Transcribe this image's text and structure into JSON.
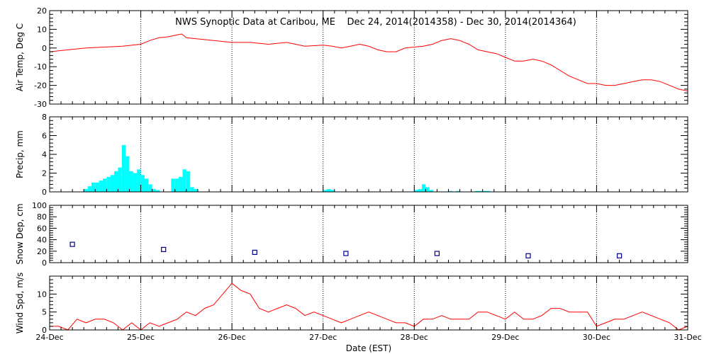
{
  "title": "NWS Synoptic Data at Caribou, ME    Dec 24, 2014(2014358) - Dec 30, 2014(2014364)",
  "xlabel": "Date (EST)",
  "x_tick_labels": [
    "24-Dec",
    "25-Dec",
    "26-Dec",
    "27-Dec",
    "28-Dec",
    "29-Dec",
    "30-Dec",
    "31-Dec"
  ],
  "colors": {
    "temp": "#ff0000",
    "precip": "#00ffff",
    "snow": "#00008b",
    "wind": "#ff0000",
    "axis": "#000000",
    "grid": "#000000"
  },
  "chart_data": [
    {
      "type": "line",
      "ylabel": "Air Temp, Deg C",
      "ylim": [
        -30,
        20
      ],
      "yticks": [
        -30,
        -20,
        -10,
        0,
        10,
        20
      ],
      "xlim": [
        0,
        7
      ],
      "grid": "dotted-vertical",
      "x": [
        0,
        0.2,
        0.4,
        0.6,
        0.8,
        1.0,
        1.1,
        1.2,
        1.3,
        1.4,
        1.45,
        1.5,
        1.6,
        1.7,
        1.8,
        2.0,
        2.2,
        2.4,
        2.6,
        2.8,
        3.0,
        3.1,
        3.2,
        3.3,
        3.4,
        3.5,
        3.6,
        3.7,
        3.8,
        3.9,
        4.0,
        4.1,
        4.2,
        4.3,
        4.4,
        4.5,
        4.55,
        4.6,
        4.7,
        4.8,
        4.9,
        5.0,
        5.1,
        5.2,
        5.3,
        5.4,
        5.5,
        5.6,
        5.7,
        5.8,
        5.9,
        6.0,
        6.1,
        6.2,
        6.3,
        6.4,
        6.5,
        6.6,
        6.7,
        6.8,
        6.9,
        7.0
      ],
      "values": [
        -2,
        -1,
        0,
        0.5,
        1,
        2,
        4,
        5.5,
        6,
        7,
        7.5,
        5.5,
        5,
        4.5,
        4,
        3,
        3,
        2,
        3,
        1,
        1.5,
        1,
        0,
        1,
        2,
        1,
        -1,
        -2,
        -2,
        0,
        0.5,
        1,
        2,
        4,
        5,
        4,
        3,
        2,
        -1,
        -2,
        -3,
        -5,
        -7,
        -7,
        -6,
        -7,
        -9,
        -12,
        -15,
        -17,
        -19,
        -19,
        -20,
        -20,
        -19,
        -18,
        -17,
        -17,
        -18,
        -20,
        -22,
        -23
      ]
    },
    {
      "type": "bar",
      "ylabel": "Precip, mm",
      "ylim": [
        0,
        8
      ],
      "yticks": [
        0,
        2,
        4,
        6,
        8
      ],
      "xlim": [
        0,
        7
      ],
      "grid": "dotted-vertical",
      "x": [
        0.375,
        0.4167,
        0.4583,
        0.5,
        0.5417,
        0.5833,
        0.625,
        0.6667,
        0.7083,
        0.75,
        0.7917,
        0.8333,
        0.875,
        0.9167,
        0.9583,
        1.0,
        1.0417,
        1.0833,
        1.125,
        1.1667,
        1.3333,
        1.375,
        1.4167,
        1.4583,
        1.5,
        1.5417,
        1.5833,
        3.0,
        3.0417,
        3.0833,
        4.0,
        4.0417,
        4.0833,
        4.125,
        4.1667,
        4.375,
        4.4583,
        4.6667,
        4.7083,
        4.75,
        4.7917
      ],
      "values": [
        0.3,
        0.6,
        1.0,
        1.0,
        1.2,
        1.4,
        1.6,
        1.8,
        2.2,
        2.6,
        5.0,
        3.8,
        2.2,
        2.0,
        2.4,
        1.8,
        1.4,
        0.8,
        0.3,
        0.2,
        1.4,
        1.4,
        1.6,
        2.4,
        2.2,
        0.5,
        0.3,
        0.2,
        0.3,
        0.2,
        0.2,
        0.3,
        0.8,
        0.5,
        0.2,
        0.1,
        0.1,
        0.1,
        0.1,
        0.1,
        0.1
      ]
    },
    {
      "type": "scatter",
      "ylabel": "Snow Dep, cm",
      "ylim": [
        0,
        100
      ],
      "yticks": [
        0,
        20,
        40,
        60,
        80,
        100
      ],
      "xlim": [
        0,
        7
      ],
      "grid": "dotted-vertical",
      "marker": "square",
      "x": [
        0.25,
        1.25,
        2.25,
        3.25,
        4.25,
        5.25,
        6.25
      ],
      "values": [
        32,
        23,
        18,
        16,
        16,
        12,
        12
      ]
    },
    {
      "type": "line",
      "ylabel": "Wind Spd, m/s",
      "ylim": [
        0,
        15
      ],
      "yticks": [
        0,
        5,
        10
      ],
      "xlim": [
        0,
        7
      ],
      "grid": "dotted-vertical",
      "x": [
        0,
        0.1,
        0.2,
        0.3,
        0.4,
        0.5,
        0.6,
        0.7,
        0.8,
        0.9,
        1.0,
        1.1,
        1.2,
        1.3,
        1.4,
        1.5,
        1.6,
        1.7,
        1.8,
        1.9,
        2.0,
        2.1,
        2.2,
        2.3,
        2.4,
        2.5,
        2.6,
        2.7,
        2.8,
        2.9,
        3.0,
        3.1,
        3.2,
        3.3,
        3.4,
        3.5,
        3.6,
        3.7,
        3.8,
        3.9,
        4.0,
        4.1,
        4.2,
        4.3,
        4.4,
        4.5,
        4.6,
        4.7,
        4.8,
        4.9,
        5.0,
        5.1,
        5.2,
        5.3,
        5.4,
        5.5,
        5.6,
        5.7,
        5.8,
        5.9,
        6.0,
        6.1,
        6.2,
        6.3,
        6.4,
        6.5,
        6.6,
        6.7,
        6.8,
        6.9,
        7.0
      ],
      "values": [
        1,
        1,
        0,
        3,
        2,
        3,
        3,
        2,
        0,
        2,
        0,
        2,
        1,
        2,
        3,
        5,
        4,
        6,
        7,
        10,
        13,
        11,
        10,
        6,
        5,
        6,
        7,
        6,
        4,
        5,
        4,
        3,
        2,
        3,
        4,
        5,
        4,
        3,
        2,
        2,
        1,
        3,
        3,
        4,
        3,
        3,
        3,
        5,
        5,
        4,
        3,
        5,
        3,
        3,
        4,
        6,
        6,
        5,
        5,
        5,
        1,
        2,
        3,
        3,
        4,
        5,
        4,
        3,
        2,
        0,
        1
      ]
    }
  ]
}
